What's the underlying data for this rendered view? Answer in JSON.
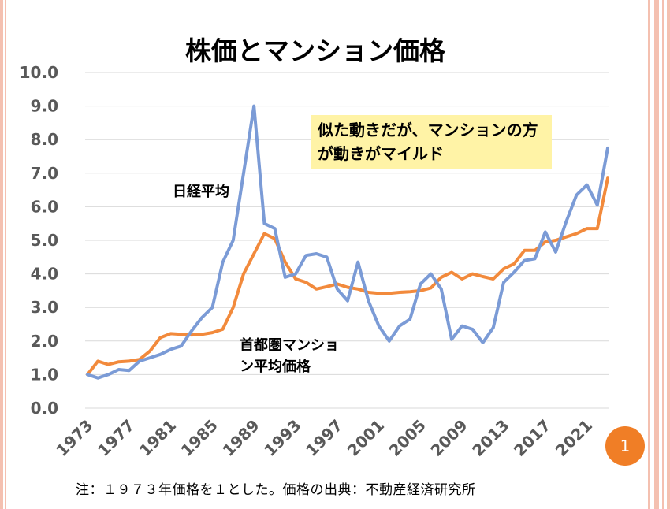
{
  "slide": {
    "title": "株価とマンション価格",
    "callout": "似た動きだが、マンションの方が動きがマイルド",
    "label_nikkei": "日経平均",
    "label_mansion": "首都圏マンション平均価格",
    "footnote": "注：１９７３年価格を１とした。価格の出典：不動産経済研究所",
    "page_number": "1"
  },
  "colors": {
    "nikkei": "#7b9bd6",
    "mansion": "#f28a3c",
    "grid": "#d9d9d9",
    "badge": "#f07e26",
    "callout_bg": "#fff3a6"
  },
  "chart_data": {
    "type": "line",
    "title": "株価とマンション価格",
    "xlabel": "",
    "ylabel": "",
    "ylim": [
      0,
      10
    ],
    "y_ticks": [
      "0.0",
      "1.0",
      "2.0",
      "3.0",
      "4.0",
      "5.0",
      "6.0",
      "7.0",
      "8.0",
      "9.0",
      "10.0"
    ],
    "x_tick_labels": [
      "1973",
      "1977",
      "1981",
      "1985",
      "1989",
      "1993",
      "1997",
      "2001",
      "2005",
      "2009",
      "2013",
      "2017",
      "2021"
    ],
    "grid": true,
    "legend": "none (inline labels)",
    "x": [
      1973,
      1974,
      1975,
      1976,
      1977,
      1978,
      1979,
      1980,
      1981,
      1982,
      1983,
      1984,
      1985,
      1986,
      1987,
      1988,
      1989,
      1990,
      1991,
      1992,
      1993,
      1994,
      1995,
      1996,
      1997,
      1998,
      1999,
      2000,
      2001,
      2002,
      2003,
      2004,
      2005,
      2006,
      2007,
      2008,
      2009,
      2010,
      2011,
      2012,
      2013,
      2014,
      2015,
      2016,
      2017,
      2018,
      2019,
      2020,
      2021,
      2022,
      2023
    ],
    "series": [
      {
        "name": "日経平均",
        "values": [
          1.0,
          0.9,
          1.0,
          1.15,
          1.12,
          1.4,
          1.5,
          1.6,
          1.75,
          1.85,
          2.3,
          2.7,
          3.0,
          4.35,
          5.0,
          7.0,
          9.0,
          5.5,
          5.35,
          3.9,
          4.0,
          4.55,
          4.6,
          4.5,
          3.55,
          3.2,
          4.35,
          3.2,
          2.45,
          2.0,
          2.45,
          2.65,
          3.7,
          4.0,
          3.55,
          2.05,
          2.45,
          2.35,
          1.95,
          2.4,
          3.75,
          4.05,
          4.4,
          4.45,
          5.25,
          4.65,
          5.55,
          6.35,
          6.65,
          6.05,
          7.75
        ]
      },
      {
        "name": "首都圏マンション平均価格",
        "values": [
          1.0,
          1.4,
          1.3,
          1.38,
          1.4,
          1.45,
          1.7,
          2.1,
          2.22,
          2.2,
          2.18,
          2.2,
          2.25,
          2.35,
          3.0,
          4.0,
          4.6,
          5.2,
          5.05,
          4.35,
          3.85,
          3.75,
          3.55,
          3.62,
          3.7,
          3.6,
          3.55,
          3.45,
          3.42,
          3.42,
          3.45,
          3.47,
          3.5,
          3.58,
          3.9,
          4.05,
          3.85,
          4.0,
          3.92,
          3.85,
          4.15,
          4.3,
          4.7,
          4.7,
          4.95,
          5.0,
          5.1,
          5.2,
          5.35,
          5.35,
          6.85
        ]
      }
    ]
  }
}
